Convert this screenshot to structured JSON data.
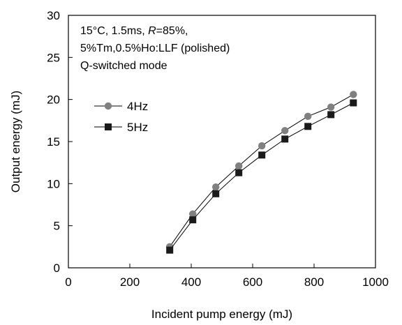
{
  "chart_data": {
    "type": "line",
    "xlabel": "Incident pump energy (mJ)",
    "ylabel": "Output energy (mJ)",
    "xlim": [
      0,
      1000
    ],
    "ylim": [
      0,
      30
    ],
    "xticks": [
      0,
      200,
      400,
      600,
      800,
      1000
    ],
    "yticks": [
      0,
      5,
      10,
      15,
      20,
      25,
      30
    ],
    "grid": false,
    "legend_placement": "upper-left",
    "annotations": [
      {
        "parts": [
          "15°C, 1.5ms,  ",
          "R",
          "=85%,"
        ],
        "italic_part": 1
      },
      {
        "parts": [
          "5%Tm,0.5%Ho:LLF (polished)"
        ]
      },
      {
        "parts": [
          "Q-switched mode"
        ]
      }
    ],
    "x": [
      330,
      405,
      480,
      555,
      630,
      705,
      780,
      855,
      928
    ],
    "series": [
      {
        "name": "4Hz",
        "marker": "circle",
        "color": "#808080",
        "values": [
          2.5,
          6.4,
          9.6,
          12.1,
          14.5,
          16.3,
          18.0,
          19.1,
          20.6
        ]
      },
      {
        "name": "5Hz",
        "marker": "square",
        "color": "#1a1a1a",
        "values": [
          2.1,
          5.7,
          8.8,
          11.3,
          13.4,
          15.3,
          16.8,
          18.2,
          19.6
        ]
      }
    ]
  }
}
